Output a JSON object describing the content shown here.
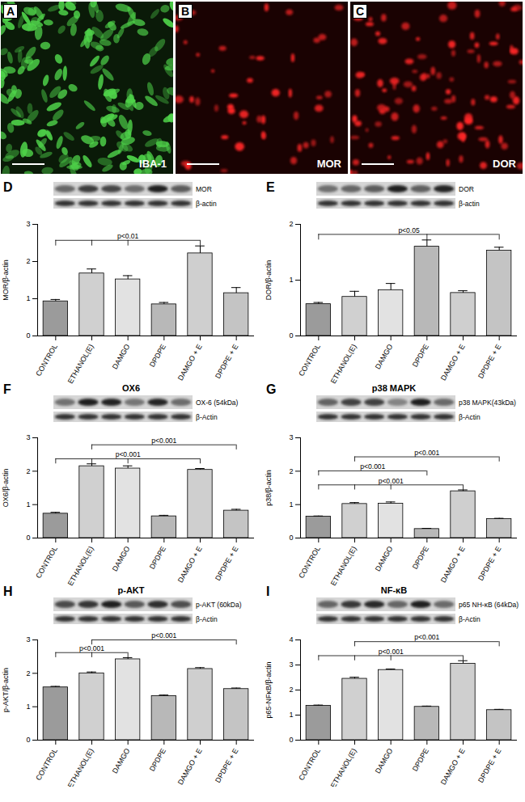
{
  "chart_data": [
    {
      "type": "image",
      "panel": "A",
      "label": "IBA-1",
      "color": "#4fd34a"
    },
    {
      "type": "image",
      "panel": "B",
      "label": "MOR",
      "color": "#ff2626"
    },
    {
      "type": "image",
      "panel": "C",
      "label": "DOR",
      "color": "#ff2626"
    },
    {
      "type": "bar",
      "panel": "D",
      "blot_labels": [
        "MOR",
        "β-actin"
      ],
      "ylabel": "MOR/β-actin",
      "categories": [
        "CONTROL",
        "ETHANOL(E)",
        "DAMGO",
        "DPDPE",
        "DAMGO + E",
        "DPDPE + E"
      ],
      "values": [
        0.93,
        1.68,
        1.52,
        0.85,
        2.22,
        1.15
      ],
      "errors": [
        0.05,
        0.12,
        0.1,
        0.05,
        0.2,
        0.15
      ],
      "colors": [
        "#9b9b9b",
        "#d0d0d0",
        "#e2e2e2",
        "#b8b8b8",
        "#cfcfcf",
        "#c4c4c4"
      ],
      "ylim": [
        0,
        3
      ],
      "yticks": [
        0,
        1,
        2,
        3
      ],
      "annotations": [
        {
          "text": "p<0.01",
          "categories": [
            "CONTROL",
            "ETHANOL(E)",
            "DAMGO",
            "DAMGO + E"
          ]
        }
      ]
    },
    {
      "type": "bar",
      "panel": "E",
      "blot_labels": [
        "DOR",
        "β-actin"
      ],
      "ylabel": "DOR/β-actin",
      "categories": [
        "CONTROL",
        "ETHANOL(E)",
        "DAMGO",
        "DPDPE",
        "DAMGO + E",
        "DPDPE + E"
      ],
      "values": [
        0.57,
        0.7,
        0.82,
        1.6,
        0.77,
        1.53
      ],
      "errors": [
        0.03,
        0.1,
        0.12,
        0.12,
        0.04,
        0.06
      ],
      "colors": [
        "#9b9b9b",
        "#d0d0d0",
        "#e2e2e2",
        "#b8b8b8",
        "#cfcfcf",
        "#c4c4c4"
      ],
      "ylim": [
        0,
        2
      ],
      "yticks": [
        0,
        1,
        2
      ],
      "annotations": [
        {
          "text": "p<0.05",
          "categories": [
            "CONTROL",
            "DPDPE",
            "DPDPE + E"
          ]
        }
      ]
    },
    {
      "type": "bar",
      "panel": "F",
      "title": "OX6",
      "blot_labels": [
        "OX-6 (54kDa)",
        "β-Actin"
      ],
      "ylabel": "OX6/β-actin",
      "categories": [
        "CONTROL",
        "ETHANOL(E)",
        "DAMGO",
        "DPDPE",
        "DAMGO + E",
        "DPDPE + E"
      ],
      "values": [
        0.73,
        2.15,
        2.08,
        0.65,
        2.04,
        0.82
      ],
      "errors": [
        0.04,
        0.07,
        0.08,
        0.03,
        0.04,
        0.04
      ],
      "colors": [
        "#9b9b9b",
        "#d0d0d0",
        "#e2e2e2",
        "#b8b8b8",
        "#cfcfcf",
        "#c4c4c4"
      ],
      "ylim": [
        0,
        3
      ],
      "yticks": [
        0,
        1,
        2,
        3
      ],
      "annotations": [
        {
          "text": "p<0.001",
          "categories": [
            "CONTROL",
            "ETHANOL(E)",
            "DAMGO",
            "DAMGO + E"
          ]
        },
        {
          "text": "p<0.001",
          "categories": [
            "ETHANOL(E)",
            "DPDPE + E"
          ]
        }
      ]
    },
    {
      "type": "bar",
      "panel": "G",
      "title": "p38 MAPK",
      "blot_labels": [
        "p38 MAPK(43kDa)",
        "β-Actin"
      ],
      "ylabel": "p38/β-actin",
      "categories": [
        "CONTROL",
        "ETHANOL(E)",
        "DAMGO",
        "DPDPE",
        "DAMGO + E",
        "DPDPE + E"
      ],
      "values": [
        0.64,
        1.02,
        1.03,
        0.27,
        1.4,
        0.57
      ],
      "errors": [
        0.02,
        0.04,
        0.05,
        0.02,
        0.04,
        0.02
      ],
      "colors": [
        "#9b9b9b",
        "#d0d0d0",
        "#e2e2e2",
        "#b8b8b8",
        "#cfcfcf",
        "#c4c4c4"
      ],
      "ylim": [
        0,
        3
      ],
      "yticks": [
        0,
        1,
        2,
        3
      ],
      "annotations": [
        {
          "text": "p<0.001",
          "categories": [
            "CONTROL",
            "ETHANOL(E)",
            "DAMGO",
            "DAMGO + E"
          ]
        },
        {
          "text": "p<0.001",
          "categories": [
            "CONTROL",
            "DPDPE"
          ]
        },
        {
          "text": "p<0.001",
          "categories": [
            "ETHANOL(E)",
            "DPDPE + E"
          ]
        }
      ]
    },
    {
      "type": "bar",
      "panel": "H",
      "title": "p-AKT",
      "blot_labels": [
        "p-AKT (60kDa)",
        "β-Actin"
      ],
      "ylabel": "p-AKT/β-actin",
      "categories": [
        "CONTROL",
        "ETHANOL(E)",
        "DAMGO",
        "DPDPE",
        "DAMGO + E",
        "DPDPE + E"
      ],
      "values": [
        1.58,
        2.0,
        2.42,
        1.32,
        2.13,
        1.53
      ],
      "errors": [
        0.03,
        0.04,
        0.05,
        0.03,
        0.04,
        0.03
      ],
      "colors": [
        "#9b9b9b",
        "#d0d0d0",
        "#e2e2e2",
        "#b8b8b8",
        "#cfcfcf",
        "#c4c4c4"
      ],
      "ylim": [
        0,
        3
      ],
      "yticks": [
        0,
        1,
        2,
        3
      ],
      "annotations": [
        {
          "text": "p<0.001",
          "categories": [
            "CONTROL",
            "ETHANOL(E)",
            "DAMGO"
          ]
        },
        {
          "text": "p<0.001",
          "categories": [
            "ETHANOL(E)",
            "DPDPE + E"
          ]
        }
      ]
    },
    {
      "type": "bar",
      "panel": "I",
      "title": "NF-κB",
      "blot_labels": [
        "p65 NH-κB (64kDa)",
        "β-Actin"
      ],
      "ylabel": "p65-NFκB/β-actin",
      "categories": [
        "CONTROL",
        "ETHANOL(E)",
        "DAMGO",
        "DPDPE",
        "DAMGO + E",
        "DPDPE + E"
      ],
      "values": [
        1.37,
        2.45,
        2.8,
        1.33,
        3.05,
        1.2
      ],
      "errors": [
        0.03,
        0.06,
        0.04,
        0.03,
        0.12,
        0.03
      ],
      "colors": [
        "#9b9b9b",
        "#d0d0d0",
        "#e2e2e2",
        "#b8b8b8",
        "#cfcfcf",
        "#c4c4c4"
      ],
      "ylim": [
        0,
        4
      ],
      "yticks": [
        0,
        1,
        2,
        3,
        4
      ],
      "annotations": [
        {
          "text": "p<0.001",
          "categories": [
            "CONTROL",
            "ETHANOL(E)",
            "DAMGO",
            "DAMGO + E"
          ]
        },
        {
          "text": "p<0.001",
          "categories": [
            "ETHANOL(E)",
            "DPDPE + E"
          ]
        }
      ]
    }
  ]
}
